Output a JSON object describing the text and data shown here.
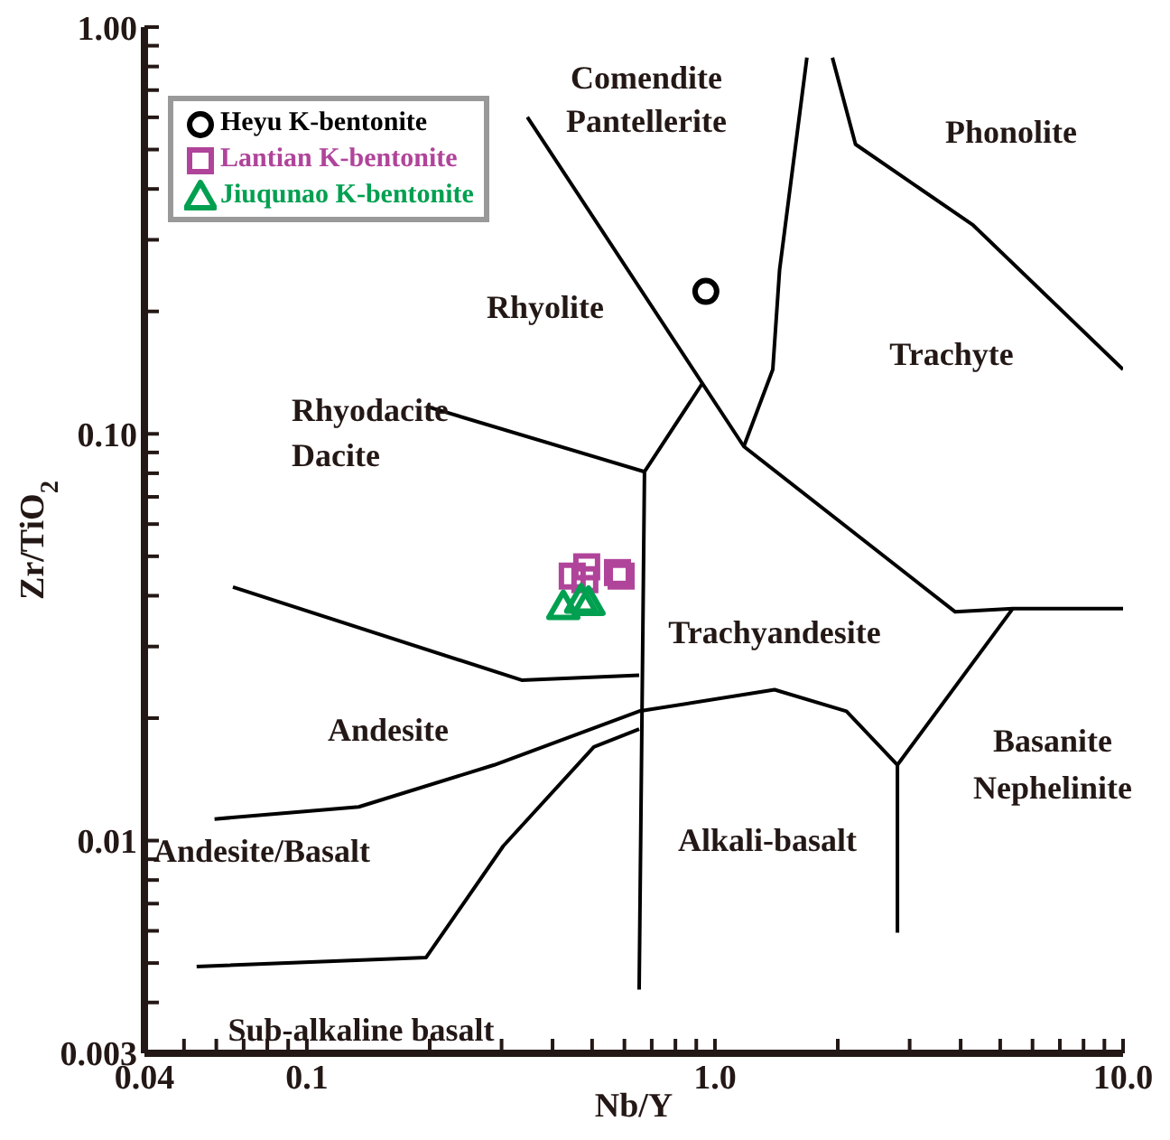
{
  "chart_data": {
    "type": "scatter",
    "xlabel": "Nb/Y",
    "ylabel": "Zr/TiO$_{2}$",
    "log": "xy",
    "legend": "top left",
    "xlim": [
      0.04,
      10
    ],
    "ylim": [
      0.003,
      1
    ],
    "xticks": [
      {
        "value": 0.04,
        "label": "0.04"
      },
      {
        "value": 0.05,
        "label": null
      },
      {
        "value": 0.06,
        "label": null
      },
      {
        "value": 0.07,
        "label": null
      },
      {
        "value": 0.08,
        "label": null
      },
      {
        "value": 0.09,
        "label": null
      },
      {
        "value": 0.1,
        "label": "0.1"
      },
      {
        "value": 0.2,
        "label": null
      },
      {
        "value": 0.3,
        "label": null
      },
      {
        "value": 0.4,
        "label": null
      },
      {
        "value": 0.5,
        "label": null
      },
      {
        "value": 0.6,
        "label": null
      },
      {
        "value": 0.7,
        "label": null
      },
      {
        "value": 0.8,
        "label": null
      },
      {
        "value": 0.9,
        "label": null
      },
      {
        "value": 1,
        "label": "1.0"
      },
      {
        "value": 2,
        "label": null
      },
      {
        "value": 3,
        "label": null
      },
      {
        "value": 4,
        "label": null
      },
      {
        "value": 5,
        "label": null
      },
      {
        "value": 6,
        "label": null
      },
      {
        "value": 7,
        "label": null
      },
      {
        "value": 8,
        "label": null
      },
      {
        "value": 9,
        "label": null
      },
      {
        "value": 10,
        "label": "10.0"
      }
    ],
    "yticks": [
      {
        "value": 0.003,
        "label": "0.003"
      },
      {
        "value": 0.004,
        "label": null
      },
      {
        "value": 0.005,
        "label": null
      },
      {
        "value": 0.006,
        "label": null
      },
      {
        "value": 0.007,
        "label": null
      },
      {
        "value": 0.008,
        "label": null
      },
      {
        "value": 0.009,
        "label": null
      },
      {
        "value": 0.01,
        "label": "0.01"
      },
      {
        "value": 0.02,
        "label": null
      },
      {
        "value": 0.03,
        "label": null
      },
      {
        "value": 0.04,
        "label": null
      },
      {
        "value": 0.05,
        "label": null
      },
      {
        "value": 0.06,
        "label": null
      },
      {
        "value": 0.07,
        "label": null
      },
      {
        "value": 0.08,
        "label": null
      },
      {
        "value": 0.09,
        "label": null
      },
      {
        "value": 0.1,
        "label": "0.10"
      },
      {
        "value": 0.2,
        "label": null
      },
      {
        "value": 0.3,
        "label": null
      },
      {
        "value": 0.4,
        "label": null
      },
      {
        "value": 0.5,
        "label": null
      },
      {
        "value": 0.6,
        "label": null
      },
      {
        "value": 0.7,
        "label": null
      },
      {
        "value": 0.8,
        "label": null
      },
      {
        "value": 0.9,
        "label": null
      },
      {
        "value": 1,
        "label": "1.00"
      }
    ],
    "series": [
      {
        "name": "Heyu K-bentonite",
        "color": "#000000",
        "marker": "circle",
        "x": [
          0.95
        ],
        "values": [
          0.224
        ]
      },
      {
        "name": "Lantian K-bentonite",
        "color": "#b0449a",
        "marker": "square",
        "x": [
          0.447,
          0.485,
          0.48,
          0.577,
          0.589
        ],
        "values": [
          0.0447,
          0.0471,
          0.0438,
          0.0456,
          0.0447
        ]
      },
      {
        "name": "Jiuqunao K-bentonite",
        "color": "#00a050",
        "marker": "triangle",
        "x": [
          0.425,
          0.47,
          0.49
        ],
        "values": [
          0.0376,
          0.039,
          0.0385
        ]
      },
      {
        "type": "line",
        "color": "#000000",
        "marker": "none",
        "x": [
          0.347,
          1.177,
          3.88,
          5.37,
          10
        ],
        "values": [
          0.601,
          0.0931,
          0.0365,
          0.0372,
          0.0372
        ]
      },
      {
        "type": "line",
        "color": "#000000",
        "marker": "none",
        "x": [
          0.931,
          0.672,
          0.652
        ],
        "values": [
          0.133,
          0.0807,
          0.0043
        ]
      },
      {
        "type": "line",
        "color": "#000000",
        "marker": "none",
        "x": [
          0.198,
          0.672
        ],
        "values": [
          0.1165,
          0.0807
        ]
      },
      {
        "type": "line",
        "color": "#000000",
        "marker": "none",
        "x": [
          0.0659,
          0.336,
          0.652
        ],
        "values": [
          0.042,
          0.0248,
          0.0255
        ]
      },
      {
        "type": "line",
        "color": "#000000",
        "marker": "none",
        "x": [
          5.37,
          2.8,
          2.8
        ],
        "values": [
          0.0372,
          0.01535,
          0.00594
        ]
      },
      {
        "type": "line",
        "color": "#000000",
        "marker": "none",
        "x": [
          0.0594,
          0.134,
          0.288,
          0.652,
          1.4,
          2.1,
          2.8
        ],
        "values": [
          0.0113,
          0.0121,
          0.01535,
          0.0208,
          0.0235,
          0.0208,
          0.01535
        ]
      },
      {
        "type": "line",
        "color": "#000000",
        "marker": "none",
        "x": [
          0.0537,
          0.196,
          0.303,
          0.505,
          0.652
        ],
        "values": [
          0.0049,
          0.00516,
          0.0097,
          0.017,
          0.0188
        ]
      },
      {
        "type": "line",
        "color": "#000000",
        "marker": "none",
        "x": [
          1.177,
          1.386,
          1.44,
          1.68
        ],
        "values": [
          0.0931,
          0.144,
          0.253,
          0.841
        ]
      },
      {
        "type": "line",
        "color": "#000000",
        "marker": "none",
        "x": [
          1.94,
          2.21,
          4.29,
          10
        ],
        "values": [
          0.841,
          0.515,
          0.326,
          0.144
        ]
      }
    ],
    "annotations": [
      "Comendite",
      "Pantellerite",
      "Phonolite",
      "Rhyolite",
      "Trachyte",
      "Rhyodacite",
      "Dacite",
      "Trachyandesite",
      "Andesite",
      "Basanite",
      "Nephelinite",
      "Andesite/Basalt",
      "Alkali-basalt",
      "Sub-alkaline basalt"
    ]
  }
}
